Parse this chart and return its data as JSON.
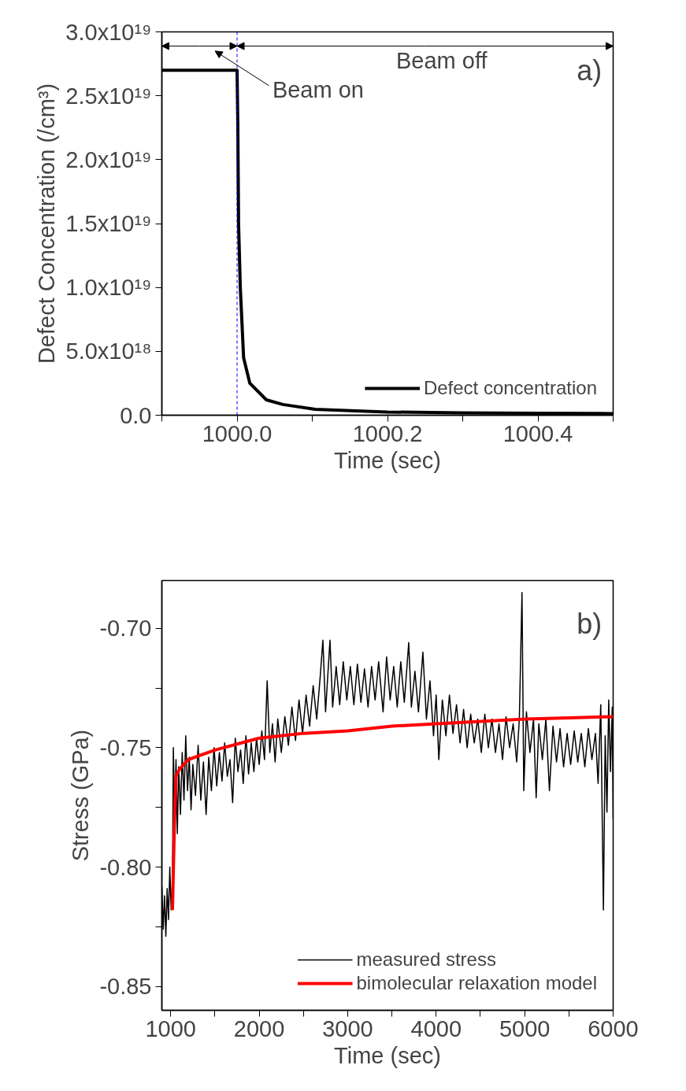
{
  "chart_data": [
    {
      "type": "line",
      "xlabel": "Time (sec)",
      "ylabel": "Defect Concentration (/cm³)",
      "annotations": [
        "Beam on",
        "Beam off",
        "a)"
      ],
      "xlim": [
        999.9,
        1000.5
      ],
      "xticks": [
        {
          "value": 999.9,
          "label": null
        },
        {
          "value": 1000.0,
          "label": "1000.0"
        },
        {
          "value": 1000.1,
          "label": null
        },
        {
          "value": 1000.2,
          "label": "1000.2"
        },
        {
          "value": 1000.3,
          "label": null
        },
        {
          "value": 1000.4,
          "label": "1000.4"
        },
        {
          "value": 1000.5,
          "label": null
        }
      ],
      "ylim": [
        0,
        3e+19
      ],
      "yticks": [
        {
          "value": 0,
          "label": "0.0"
        },
        {
          "value": 5e+18,
          "label": "5.0x10¹⁸"
        },
        {
          "value": 1e+19,
          "label": "1.0x10¹⁹"
        },
        {
          "value": 1.5e+19,
          "label": "1.5x10¹⁹"
        },
        {
          "value": 2e+19,
          "label": "2.0x10¹⁹"
        },
        {
          "value": 2.5e+19,
          "label": "2.5x10¹⁹"
        },
        {
          "value": 3e+19,
          "label": "3.0x10¹⁹"
        }
      ],
      "ref_lines": [
        {
          "axis": "x",
          "value": 1000.0,
          "color": "#0000ff",
          "line_style": "dashed"
        }
      ],
      "grid": false,
      "legend": "bottom right",
      "series": [
        {
          "name": "Defect concentration",
          "color": "#000000",
          "x": [
            999.9,
            1000.0,
            1000.001,
            1000.002,
            1000.0043,
            1000.0087,
            1000.017,
            1000.039,
            1000.061,
            1000.104,
            1000.2,
            1000.3,
            1000.4,
            1000.5
          ],
          "values": [
            2.7e+19,
            2.7e+19,
            2.27e+19,
            1.5e+19,
            1e+19,
            4.5e+18,
            2.5e+18,
            1.2e+18,
            8.4e+17,
            4.6e+17,
            2.5e+17,
            1.9e+17,
            1.6e+17,
            1.3e+17
          ]
        }
      ]
    },
    {
      "type": "line",
      "xlabel": "Time (sec)",
      "ylabel": "Stress (GPa)",
      "annotations": [
        "b)"
      ],
      "xlim": [
        900,
        6000
      ],
      "xticks": [
        1000,
        {
          "value": 1500,
          "label": null
        },
        2000,
        {
          "value": 2500,
          "label": null
        },
        3000,
        {
          "value": 3500,
          "label": null
        },
        4000,
        {
          "value": 4500,
          "label": null
        },
        5000,
        {
          "value": 5500,
          "label": null
        },
        6000
      ],
      "ylim": [
        -0.86,
        -0.68
      ],
      "yticks": [
        {
          "value": -0.85,
          "label": "-0.85"
        },
        {
          "value": -0.825,
          "label": null
        },
        {
          "value": -0.8,
          "label": "-0.80"
        },
        {
          "value": -0.775,
          "label": null
        },
        {
          "value": -0.75,
          "label": "-0.75"
        },
        {
          "value": -0.725,
          "label": null
        },
        {
          "value": -0.7,
          "label": "-0.70"
        }
      ],
      "grid": false,
      "legend": "bottom right",
      "series": [
        {
          "name": "measured stress",
          "color": "#000000",
          "x": [
            900,
            915,
            930,
            945,
            960,
            975,
            990,
            1005,
            1020,
            1030,
            1045,
            1060,
            1075,
            1090,
            1110,
            1130,
            1150,
            1170,
            1190,
            1210,
            1230,
            1250,
            1280,
            1310,
            1340,
            1370,
            1400,
            1430,
            1460,
            1490,
            1520,
            1550,
            1580,
            1610,
            1640,
            1670,
            1700,
            1730,
            1760,
            1790,
            1820,
            1850,
            1880,
            1910,
            1940,
            1970,
            2000,
            2030,
            2060,
            2090,
            2120,
            2150,
            2180,
            2210,
            2250,
            2290,
            2330,
            2370,
            2410,
            2450,
            2490,
            2530,
            2570,
            2610,
            2650,
            2690,
            2720,
            2750,
            2800,
            2830,
            2870,
            2910,
            2950,
            2990,
            3030,
            3070,
            3110,
            3150,
            3190,
            3230,
            3270,
            3310,
            3350,
            3400,
            3440,
            3480,
            3520,
            3560,
            3600,
            3640,
            3690,
            3720,
            3760,
            3800,
            3850,
            3890,
            3930,
            3970,
            4000,
            4030,
            4070,
            4110,
            4150,
            4190,
            4230,
            4270,
            4310,
            4350,
            4390,
            4430,
            4470,
            4510,
            4550,
            4590,
            4630,
            4670,
            4710,
            4750,
            4790,
            4830,
            4870,
            4910,
            4940,
            4970,
            4990,
            5020,
            5060,
            5100,
            5130,
            5160,
            5200,
            5240,
            5280,
            5320,
            5360,
            5400,
            5440,
            5480,
            5520,
            5560,
            5600,
            5640,
            5680,
            5720,
            5760,
            5800,
            5830,
            5860,
            5890,
            5910,
            5930,
            5950,
            5970,
            5990,
            6000
          ],
          "values": [
            -0.808,
            -0.826,
            -0.812,
            -0.829,
            -0.809,
            -0.822,
            -0.8,
            -0.818,
            -0.806,
            -0.75,
            -0.78,
            -0.755,
            -0.786,
            -0.758,
            -0.778,
            -0.752,
            -0.772,
            -0.745,
            -0.768,
            -0.754,
            -0.776,
            -0.757,
            -0.77,
            -0.749,
            -0.772,
            -0.756,
            -0.778,
            -0.754,
            -0.768,
            -0.75,
            -0.766,
            -0.752,
            -0.764,
            -0.748,
            -0.762,
            -0.755,
            -0.773,
            -0.746,
            -0.76,
            -0.751,
            -0.765,
            -0.745,
            -0.761,
            -0.748,
            -0.76,
            -0.746,
            -0.757,
            -0.743,
            -0.755,
            -0.722,
            -0.752,
            -0.74,
            -0.756,
            -0.738,
            -0.752,
            -0.737,
            -0.749,
            -0.733,
            -0.747,
            -0.73,
            -0.744,
            -0.728,
            -0.741,
            -0.724,
            -0.738,
            -0.72,
            -0.705,
            -0.735,
            -0.705,
            -0.733,
            -0.716,
            -0.732,
            -0.714,
            -0.73,
            -0.716,
            -0.732,
            -0.715,
            -0.731,
            -0.717,
            -0.733,
            -0.716,
            -0.73,
            -0.714,
            -0.735,
            -0.712,
            -0.73,
            -0.716,
            -0.733,
            -0.714,
            -0.731,
            -0.706,
            -0.733,
            -0.718,
            -0.735,
            -0.71,
            -0.738,
            -0.722,
            -0.745,
            -0.728,
            -0.755,
            -0.73,
            -0.745,
            -0.728,
            -0.744,
            -0.732,
            -0.748,
            -0.734,
            -0.75,
            -0.736,
            -0.748,
            -0.738,
            -0.752,
            -0.736,
            -0.75,
            -0.738,
            -0.752,
            -0.74,
            -0.755,
            -0.737,
            -0.75,
            -0.74,
            -0.756,
            -0.738,
            -0.685,
            -0.768,
            -0.735,
            -0.752,
            -0.738,
            -0.771,
            -0.74,
            -0.755,
            -0.738,
            -0.768,
            -0.741,
            -0.756,
            -0.742,
            -0.758,
            -0.744,
            -0.757,
            -0.743,
            -0.756,
            -0.744,
            -0.758,
            -0.742,
            -0.755,
            -0.744,
            -0.765,
            -0.732,
            -0.818,
            -0.745,
            -0.777,
            -0.73,
            -0.76,
            -0.733,
            -0.78
          ]
        },
        {
          "name": "bimolecular relaxation model",
          "color": "#ff0000",
          "x": [
            1020,
            1040,
            1060,
            1100,
            1200,
            1350,
            1500,
            1800,
            2000,
            2500,
            3000,
            3500,
            4000,
            4500,
            5000,
            5500,
            6000
          ],
          "values": [
            -0.818,
            -0.785,
            -0.762,
            -0.759,
            -0.755,
            -0.753,
            -0.751,
            -0.748,
            -0.746,
            -0.744,
            -0.743,
            -0.741,
            -0.74,
            -0.739,
            -0.738,
            -0.7375,
            -0.737
          ]
        }
      ]
    }
  ]
}
